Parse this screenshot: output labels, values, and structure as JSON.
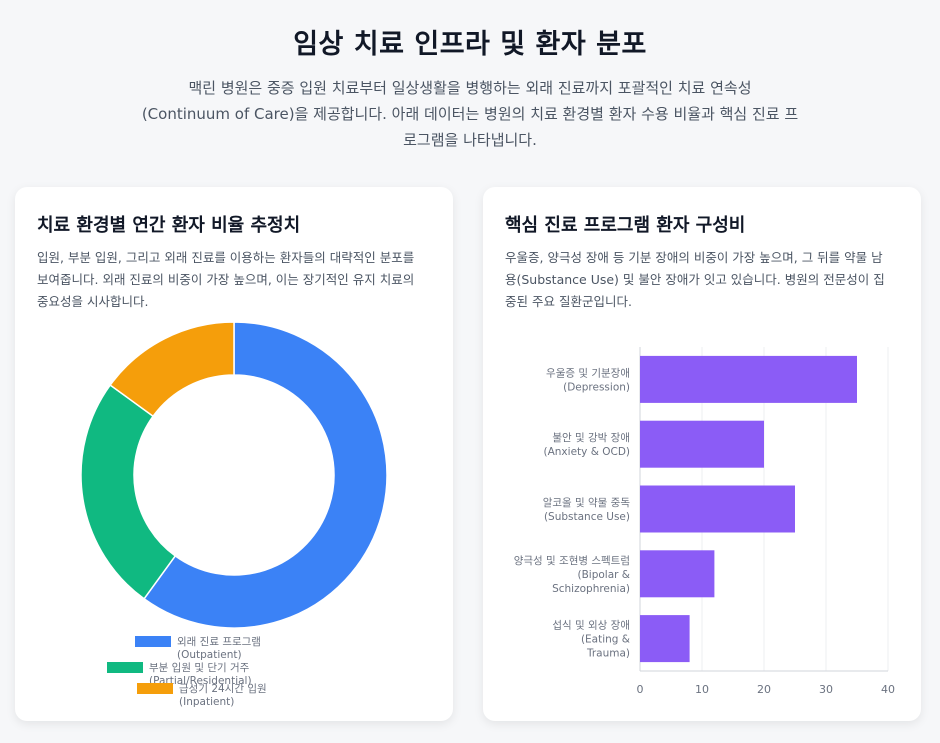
{
  "header": {
    "title": "임상 치료 인프라 및 환자 분포",
    "description_lines": [
      "맥린 병원은 중증 입원 치료부터 일상생활을 병행하는 외래 진료까지 포괄적인 치료 연속성",
      "(Continuum of Care)을 제공합니다. 아래 데이터는 병원의 치료 환경별 환자 수용 비율과 핵심 진료 프",
      "로그램을 나타냅니다."
    ]
  },
  "left_card": {
    "title": "치료 환경별 연간 환자 비율 추정치",
    "description_lines": [
      "입원, 부분 입원, 그리고 외래 진료를 이용하는 환자들의 대략적인 분포를",
      "보여줍니다. 외래 진료의 비중이 가장 높으며, 이는 장기적인 유지 치료의",
      "중요성을 시사합니다."
    ]
  },
  "right_card": {
    "title": "핵심 진료 프로그램 환자 구성비",
    "description_lines": [
      "우울증, 양극성 장애 등 기분 장애의 비중이 가장 높으며, 그 뒤를 약물 남",
      "용(Substance Use) 및 불안 장애가 잇고 있습니다. 병원의 전문성이 집",
      "중된 주요 질환군입니다."
    ]
  },
  "chart_data": [
    {
      "type": "pie",
      "variant": "doughnut",
      "categories": [
        [
          "외래 진료 프로그램",
          "(Outpatient)"
        ],
        [
          "부분 입원 및 단기 거주",
          "(Partial/Residential)"
        ],
        [
          "급성기 24시간 입원",
          "(Inpatient)"
        ]
      ],
      "values": [
        60,
        25,
        15
      ],
      "colors": [
        "#3b82f6",
        "#10b981",
        "#f59e0b"
      ],
      "legend": "bottom"
    },
    {
      "type": "bar",
      "orientation": "horizontal",
      "categories": [
        [
          "우울증 및 기분장애",
          "(Depression)"
        ],
        [
          "불안 및 강박 장애",
          "(Anxiety & OCD)"
        ],
        [
          "알코올 및 약물 중독",
          "(Substance Use)"
        ],
        [
          "양극성 및 조현병 스펙트럼",
          "(Bipolar &",
          "Schizophrenia)"
        ],
        [
          "섭식 및 외상 장애",
          "(Eating &",
          "Trauma)"
        ]
      ],
      "values": [
        35,
        20,
        25,
        12,
        8
      ],
      "color": "#8b5cf6",
      "xlim": [
        0,
        40
      ],
      "xticks": [
        0,
        10,
        20,
        30,
        40
      ],
      "grid": true
    }
  ]
}
